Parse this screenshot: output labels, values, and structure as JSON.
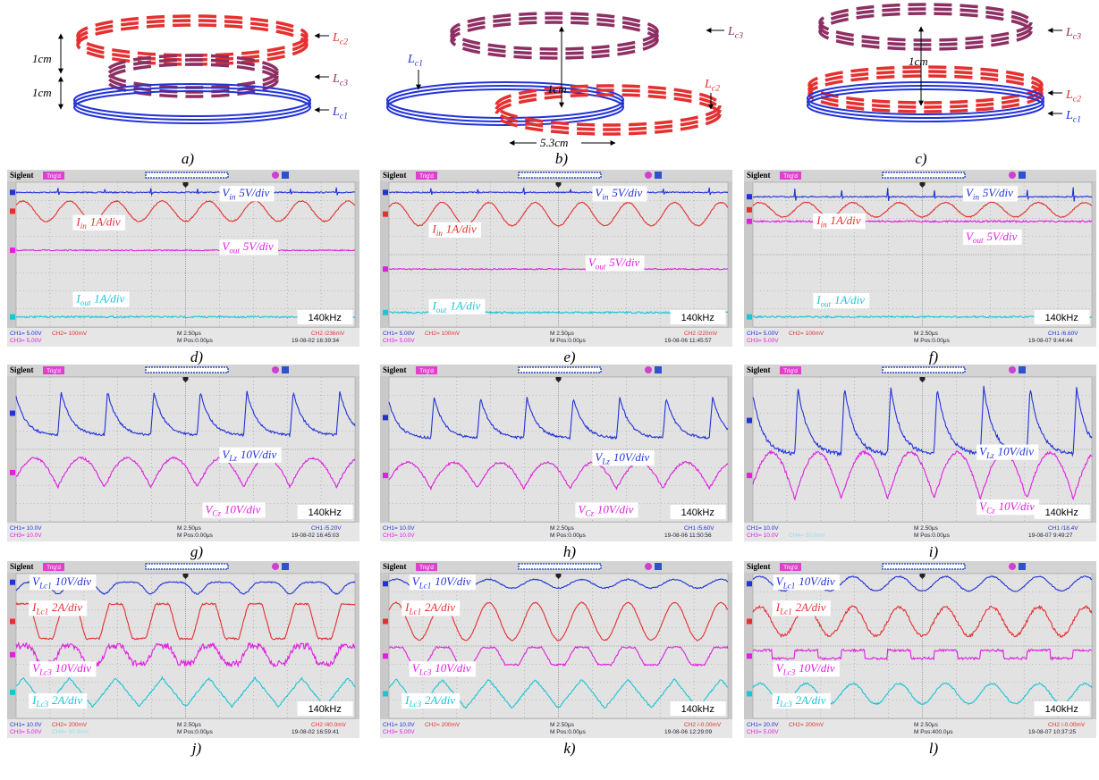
{
  "coils": [
    {
      "label": "a)",
      "inductors": [
        {
          "sym": "L",
          "sub": "c2"
        },
        {
          "sym": "L",
          "sub": "c3"
        },
        {
          "sym": "L",
          "sub": "c1"
        }
      ],
      "dims": [
        "1cm",
        "1cm"
      ]
    },
    {
      "label": "b)",
      "inductors": [
        {
          "sym": "L",
          "sub": "c3"
        },
        {
          "sym": "L",
          "sub": "c1"
        },
        {
          "sym": "L",
          "sub": "c2"
        }
      ],
      "dims": [
        "1cm",
        "5.3cm"
      ]
    },
    {
      "label": "c)",
      "inductors": [
        {
          "sym": "L",
          "sub": "c3"
        },
        {
          "sym": "L",
          "sub": "c2"
        },
        {
          "sym": "L",
          "sub": "c1"
        }
      ],
      "dims": [
        "1cm"
      ]
    }
  ],
  "scopes": [
    {
      "label": "d)",
      "brand": "Siglent",
      "trig": "Trig'd",
      "traces": [
        {
          "sym": "V",
          "sub": "in",
          "scale": "5V/div"
        },
        {
          "sym": "I",
          "sub": "in",
          "scale": "1A/div"
        },
        {
          "sym": "V",
          "sub": "out",
          "scale": "5V/div"
        },
        {
          "sym": "I",
          "sub": "out",
          "scale": "1A/div"
        }
      ],
      "freq": "140kHz",
      "ch1": "CH1= 5.00V",
      "ch2": "CH2= 100mV",
      "ch3": "CH3= 5.00V",
      "timebase": "M 2.50μs",
      "mpos": "M Pos:0.00μs",
      "trigger": "CH2 /236mV",
      "date": "19-08-02 16:39:34"
    },
    {
      "label": "e)",
      "brand": "Siglent",
      "trig": "Trig'd",
      "traces": [
        {
          "sym": "V",
          "sub": "in",
          "scale": "5V/div"
        },
        {
          "sym": "I",
          "sub": "in",
          "scale": "1A/div"
        },
        {
          "sym": "V",
          "sub": "out",
          "scale": "5V/div"
        },
        {
          "sym": "I",
          "sub": "out",
          "scale": "1A/div"
        }
      ],
      "freq": "140kHz",
      "ch1": "CH1= 5.00V",
      "ch2": "CH2= 100mV",
      "ch3": "CH3= 5.00V",
      "timebase": "M 2.50μs",
      "mpos": "M Pos:0.00μs",
      "trigger": "CH2 /220mV",
      "date": "19-08-06 11:45:57"
    },
    {
      "label": "f)",
      "brand": "Siglent",
      "trig": "Trig'd",
      "traces": [
        {
          "sym": "V",
          "sub": "in",
          "scale": "5V/div"
        },
        {
          "sym": "I",
          "sub": "in",
          "scale": "1A/div"
        },
        {
          "sym": "V",
          "sub": "out",
          "scale": "5V/div"
        },
        {
          "sym": "I",
          "sub": "out",
          "scale": "1A/div"
        }
      ],
      "freq": "140kHz",
      "ch1": "CH1= 5.00V",
      "ch2": "CH2= 100mV",
      "ch3": "CH3= 5.00V",
      "timebase": "M 2.50μs",
      "mpos": "M Pos:0.00μs",
      "trigger": "CH1 /6.60V",
      "date": "19-08-07 9:44:44"
    },
    {
      "label": "g)",
      "brand": "Siglent",
      "trig": "Trig'd",
      "traces": [
        {
          "sym": "V",
          "sub": "Lz",
          "scale": "10V/div"
        },
        {
          "sym": "V",
          "sub": "Cz",
          "scale": "10V/div"
        }
      ],
      "freq": "140kHz",
      "ch1": "CH1= 10.0V",
      "ch3": "CH3= 10.0V",
      "timebase": "M 2.50μs",
      "mpos": "M Pos:0.00μs",
      "trigger": "CH1 /5.20V",
      "date": "19-08-02 16:45:03"
    },
    {
      "label": "h)",
      "brand": "Siglent",
      "trig": "Trig'd",
      "traces": [
        {
          "sym": "V",
          "sub": "Lz",
          "scale": "10V/div"
        },
        {
          "sym": "V",
          "sub": "Cz",
          "scale": "10V/div"
        }
      ],
      "freq": "140kHz",
      "ch1": "CH1= 10.0V",
      "ch3": "CH3= 10.0V",
      "timebase": "M 2.50μs",
      "mpos": "M Pos:0.00μs",
      "trigger": "CH1 /5.60V",
      "date": "19-08-06 11:50:56"
    },
    {
      "label": "i)",
      "brand": "Siglent",
      "trig": "Trig'd",
      "traces": [
        {
          "sym": "V",
          "sub": "Lz",
          "scale": "10V/div"
        },
        {
          "sym": "V",
          "sub": "Cz",
          "scale": "10V/div"
        }
      ],
      "freq": "140kHz",
      "ch1": "CH1= 10.0V",
      "ch3": "CH3= 10.0V",
      "ch4": "CH4= 50.0mV",
      "timebase": "M 2.50μs",
      "mpos": "M Pos:0.00μs",
      "trigger": "CH1 /18.4V",
      "date": "19-08-07 9:49:27"
    },
    {
      "label": "j)",
      "brand": "Siglent",
      "trig": "Trig'd",
      "traces": [
        {
          "sym": "V",
          "sub": "Lc1",
          "scale": "10V/div"
        },
        {
          "sym": "I",
          "sub": "Lc1",
          "scale": "2A/div"
        },
        {
          "sym": "V",
          "sub": "Lc3",
          "scale": "10V/div"
        },
        {
          "sym": "I",
          "sub": "Lc3",
          "scale": "2A/div"
        }
      ],
      "freq": "140kHz",
      "ch1": "CH1= 10.0V",
      "ch2": "CH2= 200mV",
      "ch3": "CH3= 5.00V",
      "ch4": "CH4= 50.0mV",
      "timebase": "M 2.50μs",
      "mpos": "M Pos:0.00μs",
      "trigger": "CH2 /40.0mV",
      "date": "19-08-02 16:59:41"
    },
    {
      "label": "k)",
      "brand": "Siglent",
      "trig": "Trig'd",
      "traces": [
        {
          "sym": "V",
          "sub": "Lc1",
          "scale": "10V/div"
        },
        {
          "sym": "I",
          "sub": "Lc1",
          "scale": "2A/div"
        },
        {
          "sym": "V",
          "sub": "Lc3",
          "scale": "10V/div"
        },
        {
          "sym": "I",
          "sub": "Lc3",
          "scale": "2A/div"
        }
      ],
      "freq": "140kHz",
      "ch1": "CH1= 10.0V",
      "ch2": "CH2= 200mV",
      "ch3": "CH3= 5.00V",
      "timebase": "M 2.50μs",
      "mpos": "M Pos:0.00μs",
      "trigger": "CH2 /-0.00mV",
      "date": "19-08-06 12:29:09"
    },
    {
      "label": "l)",
      "brand": "Siglent",
      "trig": "Trig'd",
      "traces": [
        {
          "sym": "V",
          "sub": "Lc1",
          "scale": "10V/div"
        },
        {
          "sym": "I",
          "sub": "Lc1",
          "scale": "2A/div"
        },
        {
          "sym": "V",
          "sub": "Lc3",
          "scale": "10V/div"
        },
        {
          "sym": "I",
          "sub": "Lc3",
          "scale": "2A/div"
        }
      ],
      "freq": "140kHz",
      "ch1": "CH1= 20.0V",
      "ch2": "CH2= 200mV",
      "ch3": "CH3= 5.00V",
      "timebase": "M 2.50μs",
      "mpos": "M Pos:400.0μs",
      "trigger": "CH2 /-0.00mV",
      "date": "19-08-07 10:37:25"
    }
  ]
}
